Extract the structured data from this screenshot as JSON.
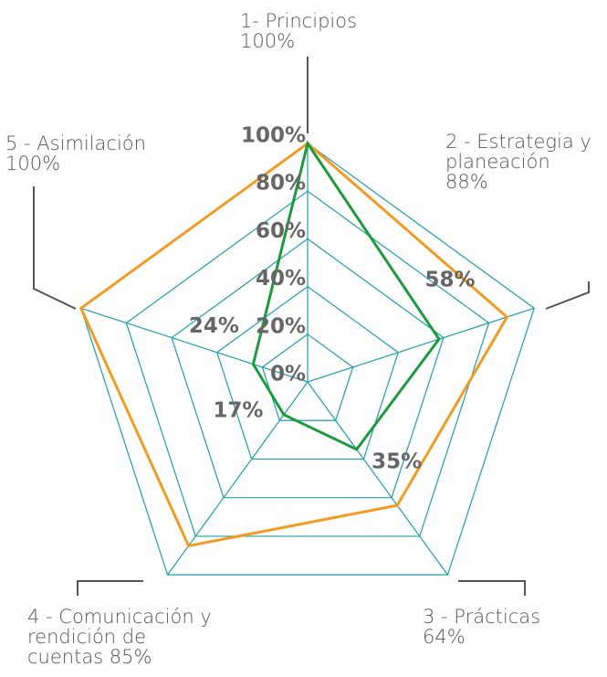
{
  "chart_data": {
    "type": "radar",
    "categories": [
      "1- Principios",
      "2 - Estrategia y planeación",
      "3 - Prácticas",
      "4 - Comunicación y rendición de",
      "5 - Asimilación"
    ],
    "series": [
      {
        "color": "#f29b23",
        "values": [
          100,
          88,
          64,
          85,
          100
        ],
        "value_labels": [
          "100%",
          "88%",
          "64%",
          "cuentas 85%",
          "100%"
        ]
      },
      {
        "color": "#1c9a3e",
        "values": [
          100,
          58,
          35,
          17,
          24
        ],
        "value_labels": [
          null,
          "58%",
          "35%",
          "17%",
          "24%"
        ]
      }
    ],
    "rlim": [
      0,
      100
    ],
    "rticks": [
      {
        "value": 0,
        "label": "0%"
      },
      {
        "value": 20,
        "label": "20%"
      },
      {
        "value": 40,
        "label": "40%"
      },
      {
        "value": 60,
        "label": "60%"
      },
      {
        "value": 80,
        "label": "80%"
      },
      {
        "value": 100,
        "label": "100%"
      }
    ],
    "grid_color": "#1f9eab"
  }
}
